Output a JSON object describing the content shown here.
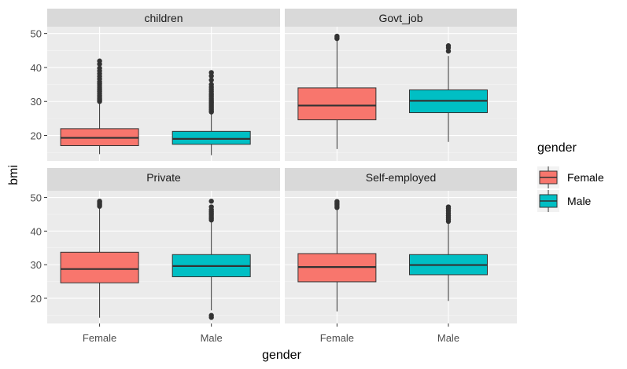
{
  "chart_data": {
    "type": "boxplot",
    "facet_variable": "work_type",
    "xlabel": "gender",
    "ylabel": "bmi",
    "categories": [
      "Female",
      "Male"
    ],
    "y_ticks": [
      20,
      30,
      40,
      50
    ],
    "ylim": [
      12.5,
      52
    ],
    "grid": true,
    "legend": {
      "title": "gender",
      "placement": "right",
      "entries": [
        {
          "label": "Female",
          "color": "#F8766D"
        },
        {
          "label": "Male",
          "color": "#00BFC4"
        }
      ]
    },
    "panels": [
      {
        "name": "children",
        "boxes": [
          {
            "category": "Female",
            "color": "#F8766D",
            "min": 14.5,
            "q1": 17.0,
            "median": 19.3,
            "q3": 22.0,
            "max": 29.3,
            "outliers": [
              30.0,
              30.4,
              30.8,
              31.3,
              31.8,
              32.3,
              32.9,
              33.4,
              34.0,
              34.6,
              35.2,
              35.8,
              36.6,
              37.4,
              38.2,
              39.0,
              39.8,
              41.0,
              41.9
            ]
          },
          {
            "category": "Male",
            "color": "#00BFC4",
            "min": 14.2,
            "q1": 17.4,
            "median": 19.0,
            "q3": 21.2,
            "max": 26.5,
            "outliers": [
              26.9,
              27.2,
              27.6,
              28.0,
              28.4,
              28.8,
              29.2,
              29.6,
              30.0,
              30.4,
              30.9,
              31.4,
              31.9,
              32.4,
              33.0,
              33.6,
              34.2,
              35.0,
              36.3,
              37.5,
              38.5
            ]
          }
        ]
      },
      {
        "name": "Govt_job",
        "boxes": [
          {
            "category": "Female",
            "color": "#F8766D",
            "min": 16.0,
            "q1": 24.6,
            "median": 28.8,
            "q3": 34.0,
            "max": 48.1,
            "outliers": [
              48.5,
              48.8,
              49.2
            ]
          },
          {
            "category": "Male",
            "color": "#00BFC4",
            "min": 18.1,
            "q1": 26.7,
            "median": 30.2,
            "q3": 33.4,
            "max": 43.4,
            "outliers": [
              44.8,
              45.8,
              46.4
            ]
          }
        ]
      },
      {
        "name": "Private",
        "boxes": [
          {
            "category": "Female",
            "color": "#F8766D",
            "min": 14.2,
            "q1": 24.6,
            "median": 28.7,
            "q3": 33.7,
            "max": 46.9,
            "outliers": [
              47.4,
              47.8,
              48.2,
              48.6,
              48.9
            ]
          },
          {
            "category": "Male",
            "color": "#00BFC4",
            "min": 16.4,
            "q1": 26.4,
            "median": 29.6,
            "q3": 33.0,
            "max": 42.8,
            "outliers": [
              14.3,
              14.9,
              43.3,
              43.8,
              44.3,
              44.8,
              45.3,
              45.8,
              46.4,
              47.2,
              48.9
            ]
          }
        ]
      },
      {
        "name": "Self-employed",
        "boxes": [
          {
            "category": "Female",
            "color": "#F8766D",
            "min": 16.1,
            "q1": 24.9,
            "median": 29.3,
            "q3": 33.3,
            "max": 46.5,
            "outliers": [
              47.0,
              47.5,
              48.0,
              48.4,
              48.8
            ]
          },
          {
            "category": "Male",
            "color": "#00BFC4",
            "min": 19.2,
            "q1": 27.0,
            "median": 29.9,
            "q3": 33.0,
            "max": 42.2,
            "outliers": [
              42.9,
              43.5,
              44.0,
              44.6,
              45.3,
              46.0,
              46.7,
              47.2
            ]
          }
        ]
      }
    ]
  }
}
